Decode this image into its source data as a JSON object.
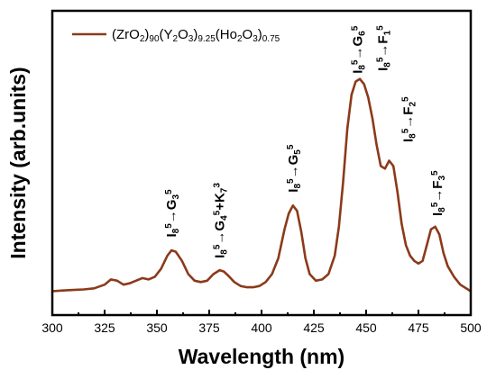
{
  "chart_data": {
    "type": "line",
    "xlabel": "Wavelength (nm)",
    "ylabel": "Intensity (arb.units)",
    "xlim": [
      300,
      500
    ],
    "ylim": [
      0,
      1.0
    ],
    "x_ticks": [
      300,
      325,
      350,
      375,
      400,
      425,
      450,
      475,
      500
    ],
    "y_ticks_labeled": false,
    "grid": false,
    "legend_position": "top-left",
    "series": [
      {
        "name": "(ZrO2)90(Y2O3)9.25(Ho2O3)0.75",
        "legend_parts": [
          {
            "t": "(ZrO",
            "s": "main"
          },
          {
            "t": "2",
            "s": "sub"
          },
          {
            "t": ")",
            "s": "main"
          },
          {
            "t": "90",
            "s": "sub"
          },
          {
            "t": "(Y",
            "s": "main"
          },
          {
            "t": "2",
            "s": "sub"
          },
          {
            "t": "O",
            "s": "main"
          },
          {
            "t": "3",
            "s": "sub"
          },
          {
            "t": ")",
            "s": "main"
          },
          {
            "t": "9.25",
            "s": "sub"
          },
          {
            "t": "(Ho",
            "s": "main"
          },
          {
            "t": "2",
            "s": "sub"
          },
          {
            "t": "O",
            "s": "main"
          },
          {
            "t": "3",
            "s": "sub"
          },
          {
            "t": ")",
            "s": "main"
          },
          {
            "t": "0.75",
            "s": "sub"
          }
        ],
        "color": "#8B3A1A",
        "x": [
          300,
          305,
          310,
          315,
          320,
          325,
          328,
          331,
          334,
          337,
          340,
          343,
          346,
          349,
          352,
          355,
          357,
          359,
          362,
          365,
          368,
          371,
          374,
          377,
          380,
          382,
          384,
          387,
          390,
          393,
          396,
          399,
          402,
          405,
          408,
          411,
          413,
          415,
          417,
          419,
          421,
          423,
          426,
          429,
          432,
          435,
          437,
          439,
          441,
          443,
          445,
          447,
          449,
          451,
          453,
          455,
          457,
          459,
          461,
          463,
          465,
          467,
          469,
          471,
          473,
          475,
          477,
          479,
          481,
          483,
          485,
          487,
          489,
          492,
          495,
          500
        ],
        "y": [
          0.005,
          0.008,
          0.01,
          0.012,
          0.016,
          0.03,
          0.05,
          0.045,
          0.03,
          0.035,
          0.045,
          0.055,
          0.05,
          0.06,
          0.09,
          0.14,
          0.16,
          0.155,
          0.12,
          0.07,
          0.045,
          0.04,
          0.045,
          0.07,
          0.085,
          0.08,
          0.065,
          0.04,
          0.025,
          0.02,
          0.02,
          0.025,
          0.04,
          0.07,
          0.13,
          0.24,
          0.3,
          0.33,
          0.31,
          0.23,
          0.13,
          0.07,
          0.045,
          0.05,
          0.07,
          0.14,
          0.25,
          0.42,
          0.62,
          0.75,
          0.8,
          0.81,
          0.79,
          0.74,
          0.66,
          0.56,
          0.48,
          0.47,
          0.5,
          0.48,
          0.38,
          0.26,
          0.18,
          0.14,
          0.12,
          0.11,
          0.12,
          0.18,
          0.24,
          0.25,
          0.22,
          0.15,
          0.1,
          0.06,
          0.03,
          0.005
        ]
      }
    ],
    "annotations": [
      {
        "parts": [
          {
            "t": "I",
            "s": "main"
          },
          {
            "t": "8",
            "s": "sub"
          },
          {
            "t": "5",
            "s": "sup"
          },
          {
            "t": "→",
            "s": "main"
          },
          {
            "t": "G",
            "s": "main"
          },
          {
            "t": "3",
            "s": "sub"
          },
          {
            "t": "5",
            "s": "sup"
          }
        ],
        "x": 357,
        "y": 0.21
      },
      {
        "parts": [
          {
            "t": "I",
            "s": "main"
          },
          {
            "t": "8",
            "s": "sub"
          },
          {
            "t": "5",
            "s": "sup"
          },
          {
            "t": "→",
            "s": "main"
          },
          {
            "t": "G",
            "s": "main"
          },
          {
            "t": "4",
            "s": "sub"
          },
          {
            "t": "5",
            "s": "sup"
          },
          {
            "t": "+K",
            "s": "main"
          },
          {
            "t": "7",
            "s": "sub"
          },
          {
            "t": "3",
            "s": "sup"
          }
        ],
        "x": 380,
        "y": 0.13
      },
      {
        "parts": [
          {
            "t": "I",
            "s": "main"
          },
          {
            "t": "8",
            "s": "sub"
          },
          {
            "t": "5",
            "s": "sup"
          },
          {
            "t": "→",
            "s": "main"
          },
          {
            "t": "G",
            "s": "main"
          },
          {
            "t": "5",
            "s": "sub"
          },
          {
            "t": "5",
            "s": "sup"
          }
        ],
        "x": 415,
        "y": 0.38
      },
      {
        "parts": [
          {
            "t": "I",
            "s": "main"
          },
          {
            "t": "8",
            "s": "sub"
          },
          {
            "t": "5",
            "s": "sup"
          },
          {
            "t": "→",
            "s": "main"
          },
          {
            "t": "G",
            "s": "main"
          },
          {
            "t": "6",
            "s": "sub"
          },
          {
            "t": "5",
            "s": "sup"
          }
        ],
        "x": 446,
        "y": 0.83
      },
      {
        "parts": [
          {
            "t": "I",
            "s": "main"
          },
          {
            "t": "8",
            "s": "sub"
          },
          {
            "t": "5",
            "s": "sup"
          },
          {
            "t": "→",
            "s": "main"
          },
          {
            "t": "F",
            "s": "main"
          },
          {
            "t": "1",
            "s": "sub"
          },
          {
            "t": "5",
            "s": "sup"
          }
        ],
        "x": 458,
        "y": 0.84
      },
      {
        "parts": [
          {
            "t": "I",
            "s": "main"
          },
          {
            "t": "8",
            "s": "sub"
          },
          {
            "t": "5",
            "s": "sup"
          },
          {
            "t": "→",
            "s": "main"
          },
          {
            "t": "F",
            "s": "main"
          },
          {
            "t": "2",
            "s": "sub"
          },
          {
            "t": "5",
            "s": "sup"
          }
        ],
        "x": 470,
        "y": 0.57
      },
      {
        "parts": [
          {
            "t": "I",
            "s": "main"
          },
          {
            "t": "8",
            "s": "sub"
          },
          {
            "t": "5",
            "s": "sup"
          },
          {
            "t": "→",
            "s": "main"
          },
          {
            "t": "F",
            "s": "main"
          },
          {
            "t": "3",
            "s": "sub"
          },
          {
            "t": "5",
            "s": "sup"
          }
        ],
        "x": 484,
        "y": 0.29
      }
    ]
  }
}
